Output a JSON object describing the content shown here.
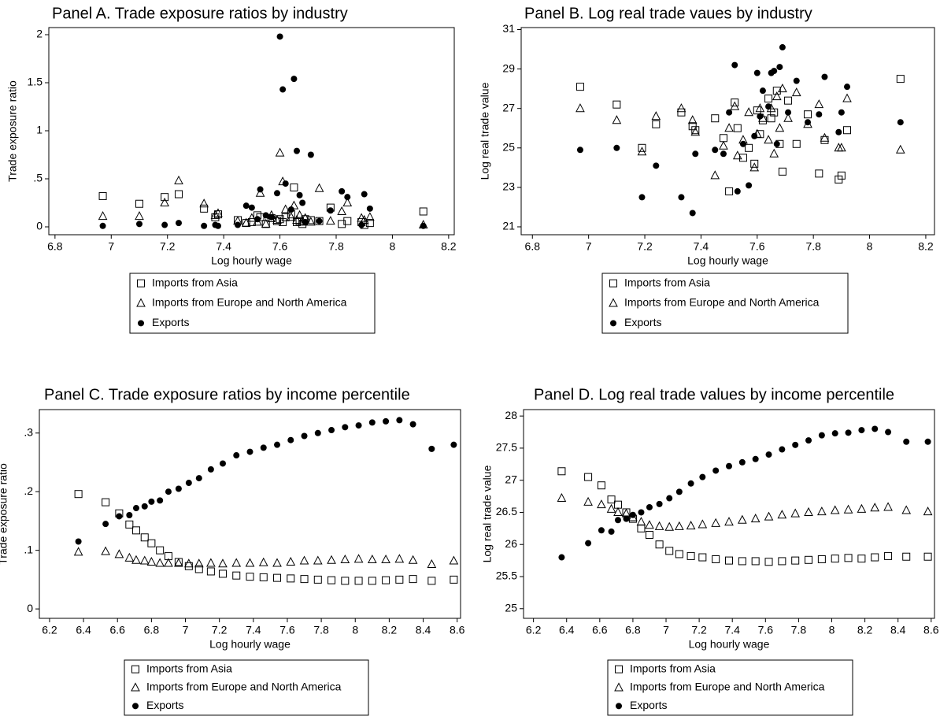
{
  "chart_data": [
    {
      "type": "scatter",
      "title": "Panel A. Trade exposure ratios by industry",
      "xlabel": "Log hourly wage",
      "ylabel": "Trade exposure ratio",
      "legend": "below",
      "x": [
        6.97,
        7.1,
        7.19,
        7.24,
        7.33,
        7.37,
        7.38,
        7.45,
        7.48,
        7.5,
        7.52,
        7.53,
        7.55,
        7.57,
        7.59,
        7.6,
        7.61,
        7.62,
        7.64,
        7.65,
        7.66,
        7.67,
        7.68,
        7.69,
        7.71,
        7.74,
        7.78,
        7.82,
        7.84,
        7.89,
        7.9,
        7.92,
        8.11
      ],
      "xlim": [
        6.778,
        8.22
      ],
      "xticks": [
        6.8,
        7,
        7.2,
        7.4,
        7.6,
        7.8,
        8,
        8.2
      ],
      "ylim": [
        -0.082,
        2.074
      ],
      "yticks": [
        0,
        {
          "value": 0.5,
          "label": ".5"
        },
        1,
        1.5,
        2
      ],
      "series": [
        {
          "name": "Imports from Asia",
          "marker": "square",
          "color": "#000000",
          "values": [
            0.32,
            0.24,
            0.31,
            0.34,
            0.19,
            0.1,
            0.13,
            0.07,
            0.04,
            0.05,
            0.12,
            0.1,
            0.03,
            0.09,
            0.06,
            0.08,
            0.05,
            0.1,
            0.13,
            0.41,
            0.05,
            0.06,
            0.03,
            0.08,
            0.07,
            0.06,
            0.2,
            0.03,
            0.06,
            0.05,
            0.02,
            0.04,
            0.16
          ]
        },
        {
          "name": "Imports from Europe and North America",
          "marker": "triangle",
          "color": "#000000",
          "values": [
            0.11,
            0.11,
            0.25,
            0.48,
            0.24,
            0.12,
            0.14,
            0.06,
            0.04,
            0.09,
            0.05,
            0.35,
            0.03,
            0.12,
            0.07,
            0.77,
            0.47,
            0.18,
            0.1,
            0.22,
            0.07,
            0.12,
            0.05,
            0.09,
            0.05,
            0.4,
            0.06,
            0.16,
            0.25,
            0.09,
            0.07,
            0.1,
            0.02
          ]
        },
        {
          "name": "Exports",
          "marker": "circle",
          "color": "#000000",
          "values": [
            0.01,
            0.03,
            0.02,
            0.04,
            0.01,
            0.02,
            0.01,
            0.02,
            0.22,
            0.2,
            0.08,
            0.39,
            0.12,
            0.1,
            0.35,
            1.98,
            1.43,
            0.45,
            0.18,
            1.54,
            0.79,
            0.33,
            0.25,
            0.05,
            0.75,
            0.06,
            0.17,
            0.37,
            0.31,
            0.02,
            0.34,
            0.19,
            0.01
          ]
        }
      ]
    },
    {
      "type": "scatter",
      "title": "Panel B. Log real trade vaues by industry",
      "xlabel": "Log hourly wage",
      "ylabel": "Log real trade value",
      "legend": "below",
      "x": [
        6.97,
        7.1,
        7.19,
        7.24,
        7.33,
        7.37,
        7.38,
        7.45,
        7.48,
        7.5,
        7.52,
        7.53,
        7.55,
        7.57,
        7.59,
        7.6,
        7.61,
        7.62,
        7.64,
        7.65,
        7.66,
        7.67,
        7.68,
        7.69,
        7.71,
        7.74,
        7.78,
        7.82,
        7.84,
        7.89,
        7.9,
        7.92,
        8.11
      ],
      "xlim": [
        6.76,
        8.231
      ],
      "xticks": [
        6.8,
        7,
        7.2,
        7.4,
        7.6,
        7.8,
        8,
        8.2
      ],
      "ylim": [
        20.6,
        31.1
      ],
      "yticks": [
        21,
        23,
        25,
        27,
        29,
        31
      ],
      "series": [
        {
          "name": "Imports from Asia",
          "marker": "square",
          "color": "#000000",
          "values": [
            28.1,
            27.2,
            25.0,
            26.2,
            26.8,
            26.1,
            25.9,
            26.5,
            25.5,
            22.8,
            27.3,
            26.0,
            24.5,
            25.0,
            24.2,
            26.9,
            25.7,
            26.4,
            27.5,
            26.5,
            26.8,
            27.9,
            25.2,
            23.8,
            27.4,
            25.2,
            26.7,
            23.7,
            25.4,
            23.4,
            23.6,
            25.9,
            28.5
          ]
        },
        {
          "name": "Imports from Europe and North America",
          "marker": "triangle",
          "color": "#000000",
          "values": [
            27.0,
            26.4,
            24.8,
            26.6,
            27.0,
            26.4,
            25.8,
            23.6,
            25.1,
            26.0,
            27.1,
            24.6,
            25.4,
            26.8,
            24.0,
            25.7,
            27.0,
            26.5,
            25.4,
            27.0,
            24.7,
            27.6,
            26.0,
            28.0,
            26.5,
            27.8,
            26.2,
            27.2,
            25.5,
            25.0,
            25.0,
            27.5,
            24.9
          ]
        },
        {
          "name": "Exports",
          "marker": "circle",
          "color": "#000000",
          "values": [
            24.9,
            25.0,
            22.5,
            24.1,
            22.5,
            21.7,
            24.7,
            24.9,
            24.7,
            26.8,
            29.2,
            22.8,
            25.2,
            23.1,
            25.6,
            28.8,
            26.6,
            27.9,
            27.1,
            28.8,
            28.9,
            25.2,
            29.1,
            30.1,
            26.8,
            28.4,
            26.3,
            26.7,
            28.6,
            25.8,
            26.8,
            28.1,
            26.3
          ]
        }
      ]
    },
    {
      "type": "scatter",
      "title": "Panel C. Trade exposure ratios by income percentile",
      "xlabel": "Log hourly wage",
      "ylabel": "Trade exposure ratio",
      "legend": "below",
      "x": [
        6.37,
        6.53,
        6.61,
        6.67,
        6.71,
        6.76,
        6.8,
        6.85,
        6.9,
        6.96,
        7.02,
        7.08,
        7.15,
        7.22,
        7.3,
        7.38,
        7.46,
        7.54,
        7.62,
        7.7,
        7.78,
        7.86,
        7.94,
        8.02,
        8.1,
        8.18,
        8.26,
        8.34,
        8.45,
        8.58
      ],
      "xlim": [
        6.14,
        8.62
      ],
      "xticks": [
        6.2,
        6.4,
        6.6,
        6.8,
        7,
        7.2,
        7.4,
        7.6,
        7.8,
        8,
        8.2,
        8.4,
        8.6
      ],
      "ylim": [
        -0.016,
        0.34
      ],
      "yticks": [
        0,
        {
          "value": 0.1,
          "label": ".1"
        },
        {
          "value": 0.2,
          "label": ".2"
        },
        {
          "value": 0.3,
          "label": ".3"
        }
      ],
      "series": [
        {
          "name": "Imports from Asia",
          "marker": "square",
          "color": "#000000",
          "values": [
            0.196,
            0.182,
            0.163,
            0.144,
            0.134,
            0.122,
            0.112,
            0.1,
            0.09,
            0.08,
            0.073,
            0.068,
            0.064,
            0.06,
            0.057,
            0.055,
            0.054,
            0.053,
            0.052,
            0.051,
            0.05,
            0.049,
            0.048,
            0.048,
            0.048,
            0.049,
            0.05,
            0.051,
            0.048,
            0.05
          ]
        },
        {
          "name": "Imports from Europe and North America",
          "marker": "triangle",
          "color": "#000000",
          "values": [
            0.097,
            0.098,
            0.093,
            0.087,
            0.083,
            0.082,
            0.08,
            0.078,
            0.078,
            0.078,
            0.077,
            0.077,
            0.078,
            0.077,
            0.078,
            0.078,
            0.079,
            0.078,
            0.08,
            0.082,
            0.082,
            0.083,
            0.084,
            0.085,
            0.084,
            0.084,
            0.085,
            0.083,
            0.076,
            0.082
          ]
        },
        {
          "name": "Exports",
          "marker": "circle",
          "color": "#000000",
          "values": [
            0.115,
            0.145,
            0.158,
            0.16,
            0.172,
            0.175,
            0.183,
            0.185,
            0.2,
            0.205,
            0.215,
            0.223,
            0.238,
            0.248,
            0.262,
            0.268,
            0.275,
            0.28,
            0.288,
            0.295,
            0.3,
            0.305,
            0.31,
            0.313,
            0.318,
            0.32,
            0.322,
            0.315,
            0.273,
            0.28
          ]
        }
      ]
    },
    {
      "type": "scatter",
      "title": "Panel D. Log real trade values by income percentile",
      "xlabel": "Log hourly wage",
      "ylabel": "Log real trade value",
      "legend": "below",
      "x": [
        6.37,
        6.53,
        6.61,
        6.67,
        6.71,
        6.76,
        6.8,
        6.85,
        6.9,
        6.96,
        7.02,
        7.08,
        7.15,
        7.22,
        7.3,
        7.38,
        7.46,
        7.54,
        7.62,
        7.7,
        7.78,
        7.86,
        7.94,
        8.02,
        8.1,
        8.18,
        8.26,
        8.34,
        8.45,
        8.58
      ],
      "xlim": [
        6.14,
        8.62
      ],
      "xticks": [
        6.2,
        6.4,
        6.6,
        6.8,
        7,
        7.2,
        7.4,
        7.6,
        7.8,
        8,
        8.2,
        8.4,
        8.6
      ],
      "ylim": [
        24.85,
        28.1
      ],
      "yticks": [
        25,
        25.5,
        26,
        26.5,
        27,
        27.5,
        28
      ],
      "series": [
        {
          "name": "Imports from Asia",
          "marker": "square",
          "color": "#000000",
          "values": [
            27.14,
            27.05,
            26.92,
            26.7,
            26.62,
            26.5,
            26.4,
            26.25,
            26.15,
            26.0,
            25.9,
            25.85,
            25.82,
            25.8,
            25.77,
            25.75,
            25.74,
            25.74,
            25.73,
            25.74,
            25.75,
            25.76,
            25.77,
            25.78,
            25.79,
            25.78,
            25.8,
            25.82,
            25.81,
            25.81
          ]
        },
        {
          "name": "Imports from Europe and North America",
          "marker": "triangle",
          "color": "#000000",
          "values": [
            26.72,
            26.66,
            26.62,
            26.55,
            26.5,
            26.48,
            26.42,
            26.35,
            26.3,
            26.28,
            26.27,
            26.28,
            26.29,
            26.31,
            26.33,
            26.35,
            26.38,
            26.4,
            26.43,
            26.46,
            26.48,
            26.5,
            26.51,
            26.53,
            26.54,
            26.55,
            26.57,
            26.58,
            26.53,
            26.51
          ]
        },
        {
          "name": "Exports",
          "marker": "circle",
          "color": "#000000",
          "values": [
            25.8,
            26.02,
            26.22,
            26.2,
            26.38,
            26.4,
            26.46,
            26.5,
            26.58,
            26.63,
            26.72,
            26.82,
            26.95,
            27.05,
            27.15,
            27.22,
            27.28,
            27.33,
            27.4,
            27.48,
            27.55,
            27.62,
            27.7,
            27.73,
            27.74,
            27.78,
            27.8,
            27.75,
            27.6,
            27.6
          ]
        }
      ]
    }
  ]
}
